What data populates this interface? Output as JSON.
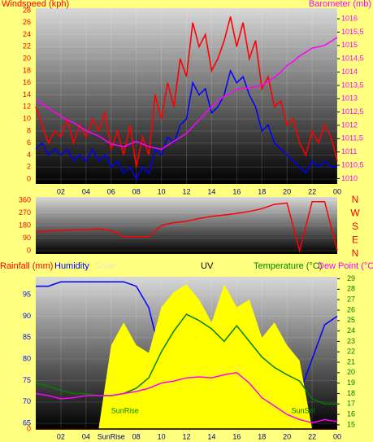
{
  "chart_data": [
    {
      "type": "line",
      "ylabel": "Windspeed (kph)",
      "y2label": "Barometer (mb)",
      "x": [
        0,
        0.5,
        1,
        1.5,
        2,
        2.5,
        3,
        3.5,
        4,
        4.5,
        5,
        5.5,
        6,
        6.5,
        7,
        7.5,
        8,
        8.5,
        9,
        9.5,
        10,
        10.5,
        11,
        11.5,
        12,
        12.5,
        13,
        13.5,
        14,
        14.5,
        15,
        15.5,
        16,
        16.5,
        17,
        17.5,
        18,
        18.5,
        19,
        19.5,
        20,
        20.5,
        21,
        21.5,
        22,
        22.5,
        23,
        23.5,
        24
      ],
      "xlim": [
        0,
        24
      ],
      "xticks": [
        {
          "value": 2,
          "label": "02"
        },
        {
          "value": 4,
          "label": "04"
        },
        {
          "value": 6,
          "label": "06"
        },
        {
          "value": 8,
          "label": "08"
        },
        10,
        12,
        14,
        16,
        18,
        20,
        22,
        {
          "value": 24,
          "label": "00"
        }
      ],
      "ylim": [
        -0.8,
        28.4
      ],
      "yticks": [
        0,
        2,
        4,
        6,
        8,
        10,
        12,
        14,
        16,
        18,
        20,
        22,
        24,
        26,
        28
      ],
      "y2lim": [
        1009.8,
        1016.4
      ],
      "y2ticks": [
        1010,
        {
          "value": 1010.5,
          "label": "1010,5"
        },
        1011,
        {
          "value": 1011.5,
          "label": "1011,5"
        },
        1012,
        {
          "value": 1012.5,
          "label": "1012,5"
        },
        1013,
        {
          "value": 1013.5,
          "label": "1013,5"
        },
        1014,
        {
          "value": 1014.5,
          "label": "1014,5"
        },
        1015,
        {
          "value": 1015.5,
          "label": "1015,5"
        },
        1016
      ],
      "series": [
        {
          "color": "#ff0000",
          "values": [
            12,
            9,
            6,
            8,
            7,
            10,
            6,
            9,
            7,
            10,
            8,
            11,
            5,
            8,
            4,
            9,
            2,
            7,
            4,
            14,
            10,
            16,
            12,
            20,
            17,
            26,
            22,
            24,
            18,
            20,
            23,
            27,
            22,
            26,
            20,
            23,
            15,
            17,
            12,
            13,
            9,
            10,
            6,
            4,
            8,
            6,
            9,
            7,
            3
          ]
        },
        {
          "color": "#0000ff",
          "values": [
            5,
            6,
            4,
            5,
            4,
            5,
            3,
            4,
            3,
            5,
            3,
            4,
            2,
            3,
            1,
            2,
            0,
            2,
            1,
            5,
            4,
            7,
            6,
            9,
            10,
            16,
            14,
            15,
            11,
            12,
            14,
            18,
            16,
            17,
            14,
            12,
            8,
            9,
            6,
            5,
            4,
            3,
            2,
            1,
            3,
            2,
            3,
            2,
            2
          ]
        },
        {
          "color": "#ff00ff",
          "axis": "y2",
          "values": [
            1012.95,
            1012.8,
            1012.65,
            1012.5,
            1012.35,
            1012.2,
            1012.1,
            1011.95,
            1011.8,
            1011.7,
            1011.6,
            1011.45,
            1011.3,
            1011.25,
            1011.2,
            1011.3,
            1011.4,
            1011.3,
            1011.2,
            1011.15,
            1011.1,
            1011.25,
            1011.4,
            1011.55,
            1011.7,
            1011.95,
            1012.2,
            1012.45,
            1012.7,
            1012.9,
            1013.1,
            1013.2,
            1013.35,
            1013.4,
            1013.4,
            1013.45,
            1013.5,
            1013.65,
            1013.8,
            1014.0,
            1014.25,
            1014.4,
            1014.6,
            1014.75,
            1014.9,
            1014.95,
            1015.0,
            1015.15,
            1015.3
          ]
        }
      ]
    },
    {
      "type": "line",
      "x": [
        0,
        1,
        2,
        3,
        4,
        5,
        6,
        7,
        8,
        9,
        10,
        11,
        12,
        13,
        14,
        15,
        16,
        17,
        18,
        19,
        20,
        21,
        22,
        23,
        24
      ],
      "xlim": [
        0,
        24
      ],
      "ylim": [
        -23,
        383
      ],
      "yticks": [
        0,
        90,
        180,
        270,
        360
      ],
      "direction_labels": [
        "N",
        "W",
        "S",
        "E",
        "N"
      ],
      "series": [
        {
          "color": "#ff0000",
          "values": [
            135,
            140,
            145,
            150,
            150,
            155,
            145,
            100,
            100,
            100,
            180,
            200,
            210,
            230,
            245,
            255,
            265,
            280,
            300,
            330,
            340,
            0,
            350,
            350,
            0
          ]
        }
      ]
    },
    {
      "type": "combo",
      "x": [
        0,
        1,
        2,
        3,
        4,
        5,
        6,
        7,
        8,
        9,
        10,
        11,
        12,
        13,
        14,
        15,
        16,
        17,
        18,
        19,
        20,
        21,
        22,
        23,
        24
      ],
      "xlim": [
        0,
        24
      ],
      "xticks": [
        {
          "value": 2,
          "label": "02"
        },
        {
          "value": 4,
          "label": "04"
        },
        {
          "value": 6,
          "label": "SunRise"
        },
        {
          "value": 8,
          "label": "08"
        },
        10,
        12,
        14,
        16,
        18,
        20,
        22,
        {
          "value": 24,
          "label": "00"
        }
      ],
      "ylim": [
        63.7,
        99.2
      ],
      "yticks": [
        65,
        70,
        75,
        80,
        85,
        90,
        95
      ],
      "y2lim": [
        14.6,
        29.2
      ],
      "y2ticks": [
        15,
        16,
        17,
        18,
        19,
        20,
        21,
        22,
        23,
        24,
        25,
        26,
        27,
        28,
        29
      ],
      "rain_ylim": [
        0,
        10
      ],
      "rain_yticks": [
        0
      ],
      "solar_ylim": [
        0,
        1000
      ],
      "annotations": [
        {
          "text": "SunRise",
          "x": 6
        },
        {
          "text": "SunSet",
          "x": 21.3
        }
      ],
      "series": [
        {
          "name": "Rainfall (mm)",
          "color": "#ff0000",
          "axis": "rain",
          "values": [
            0,
            0,
            0,
            0,
            0,
            0,
            0,
            0,
            0,
            0,
            0,
            0,
            0,
            0,
            0,
            0,
            0,
            0,
            0,
            0,
            0,
            0,
            0,
            0,
            0
          ]
        },
        {
          "name": "Humidity",
          "color": "#0000ff",
          "axis": "y",
          "values": [
            97,
            97,
            98,
            98,
            98,
            98,
            98,
            98,
            97,
            92,
            80,
            70,
            67,
            65,
            72,
            68,
            66,
            73,
            69,
            70,
            69,
            72,
            80,
            88,
            90
          ]
        },
        {
          "name": "Solar",
          "color": "#ffff00",
          "axis": "solar",
          "values": [
            0,
            0,
            0,
            0,
            0,
            0,
            550,
            700,
            550,
            500,
            800,
            900,
            950,
            850,
            700,
            950,
            800,
            850,
            600,
            700,
            550,
            450,
            0,
            0,
            0
          ]
        },
        {
          "name": "UV",
          "color": "#000000",
          "axis": "rain",
          "values": [
            0,
            0,
            0,
            0,
            0,
            0,
            0,
            0,
            0,
            0,
            0,
            0,
            0,
            0,
            0,
            0,
            0,
            0,
            0,
            0,
            0,
            0,
            0,
            0,
            0
          ]
        },
        {
          "name": "Temperature (°C)",
          "color": "#008000",
          "axis": "y2",
          "values": [
            19,
            18.7,
            18.3,
            18,
            18,
            17.8,
            17.8,
            18,
            18.5,
            19.5,
            22,
            24,
            25.6,
            25,
            24.2,
            23,
            24.5,
            23,
            21.5,
            20.5,
            19.8,
            19.2,
            17.5,
            17,
            17
          ]
        },
        {
          "name": "Dew Point (°C",
          "color": "#ff00ff",
          "axis": "y2",
          "values": [
            18,
            17.8,
            17.5,
            17.6,
            17.8,
            17.8,
            17.8,
            18,
            18.2,
            18.5,
            19,
            19.2,
            19.5,
            19.6,
            19.5,
            19.8,
            20,
            19,
            17.6,
            16.8,
            16,
            15.5,
            15.2,
            15.5,
            15.3
          ]
        }
      ]
    }
  ]
}
